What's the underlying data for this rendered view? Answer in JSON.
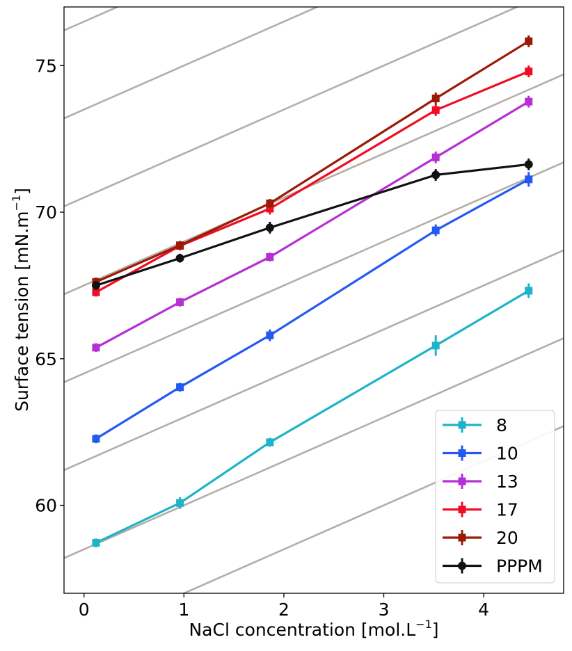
{
  "chart_data": {
    "type": "line",
    "xlabel": "NaCl concentration [mol.L",
    "xlabel_sup": "−1",
    "xlabel_end": "]",
    "ylabel": "Surface tension [mN.m",
    "ylabel_sup": "−1",
    "ylabel_end": "]",
    "xlim": [
      -0.2,
      4.8
    ],
    "ylim": [
      57.0,
      77.0
    ],
    "xticks": [
      "0",
      "1",
      "2",
      "3",
      "4"
    ],
    "xtick_values": [
      0,
      1,
      2,
      3,
      4
    ],
    "yticks": [
      "60",
      "65",
      "70",
      "75"
    ],
    "ytick_values": [
      60,
      65,
      70,
      75
    ],
    "grid": false,
    "legend_position": "lower-right",
    "background_lines": {
      "color": "#b5aea4",
      "slope": 1.5,
      "intercepts": [
        55.5,
        58.5,
        61.5,
        64.5,
        67.5,
        70.5,
        73.5,
        76.5,
        79.5,
        82.5,
        85.5
      ]
    },
    "series": [
      {
        "name": "8",
        "color": "#1eb3c8",
        "marker": "square",
        "x": [
          0.12,
          0.96,
          1.86,
          3.52,
          4.45
        ],
        "y": [
          58.72,
          60.08,
          62.15,
          65.45,
          67.32
        ],
        "err": [
          0.15,
          0.2,
          0.15,
          0.35,
          0.25
        ]
      },
      {
        "name": "10",
        "color": "#2458f2",
        "marker": "square",
        "x": [
          0.12,
          0.96,
          1.86,
          3.52,
          4.45
        ],
        "y": [
          62.27,
          64.03,
          65.8,
          69.38,
          71.12
        ],
        "err": [
          0.15,
          0.15,
          0.2,
          0.2,
          0.25
        ]
      },
      {
        "name": "13",
        "color": "#b62fd3",
        "marker": "square",
        "x": [
          0.12,
          0.96,
          1.86,
          3.52,
          4.45
        ],
        "y": [
          65.38,
          66.93,
          68.47,
          71.87,
          73.77
        ],
        "err": [
          0.15,
          0.15,
          0.15,
          0.2,
          0.2
        ]
      },
      {
        "name": "17",
        "color": "#f00d23",
        "marker": "square",
        "x": [
          0.12,
          0.96,
          1.86,
          3.52,
          4.45
        ],
        "y": [
          67.27,
          68.85,
          70.12,
          73.48,
          74.8
        ],
        "err": [
          0.15,
          0.15,
          0.2,
          0.2,
          0.2
        ]
      },
      {
        "name": "20",
        "color": "#9a1a05",
        "marker": "square",
        "x": [
          0.12,
          0.96,
          1.86,
          3.52,
          4.45
        ],
        "y": [
          67.62,
          68.87,
          70.3,
          73.88,
          75.83
        ],
        "err": [
          0.15,
          0.15,
          0.15,
          0.2,
          0.2
        ]
      },
      {
        "name": "PPPM",
        "color": "#111111",
        "marker": "circle",
        "x": [
          0.12,
          0.96,
          1.86,
          3.52,
          4.45
        ],
        "y": [
          67.5,
          68.43,
          69.47,
          71.27,
          71.63
        ],
        "err": [
          0.15,
          0.15,
          0.2,
          0.2,
          0.2
        ]
      }
    ]
  }
}
